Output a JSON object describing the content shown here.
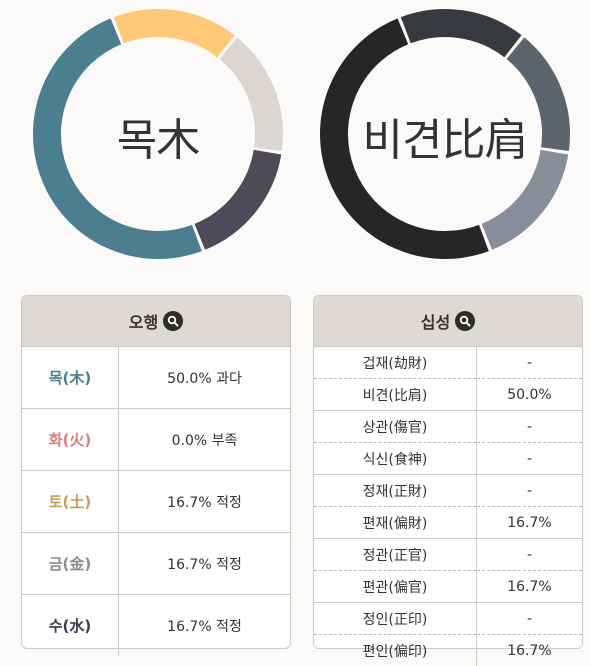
{
  "colors": {
    "wood": "#4b7f8f",
    "fire": "#df7b77",
    "earth": "#c89a5c",
    "metal": "#8c8c8c",
    "water": "#3a3a4a"
  },
  "donuts": [
    {
      "center_label": "목木",
      "segments": [
        {
          "percent": 16.7,
          "color": "#ffc977"
        },
        {
          "percent": 16.7,
          "color": "#dad6d1"
        },
        {
          "percent": 16.7,
          "color": "#4e4a57"
        },
        {
          "percent": 50.0,
          "color": "#4b7f8f"
        }
      ]
    },
    {
      "center_label": "비견比肩",
      "segments": [
        {
          "percent": 16.7,
          "color": "#36393d"
        },
        {
          "percent": 16.7,
          "color": "#5c646d"
        },
        {
          "percent": 16.7,
          "color": "#868f99"
        },
        {
          "percent": 50.0,
          "color": "#242628"
        }
      ]
    }
  ],
  "ohaeng": {
    "title": "오행",
    "icon": "search-icon",
    "rows": [
      {
        "element": "목(木)",
        "value": "50.0% 과다"
      },
      {
        "element": "화(火)",
        "value": "0.0% 부족"
      },
      {
        "element": "토(土)",
        "value": "16.7% 적정"
      },
      {
        "element": "금(金)",
        "value": "16.7% 적정"
      },
      {
        "element": "수(水)",
        "value": "16.7% 적정"
      }
    ]
  },
  "sipseong": {
    "title": "십성",
    "icon": "search-icon",
    "rows": [
      {
        "name": "겁재(劫財)",
        "value": "-"
      },
      {
        "name": "비견(比肩)",
        "value": "50.0%"
      },
      {
        "name": "상관(傷官)",
        "value": "-"
      },
      {
        "name": "식신(食神)",
        "value": "-"
      },
      {
        "name": "정재(正財)",
        "value": "-"
      },
      {
        "name": "편재(偏財)",
        "value": "16.7%"
      },
      {
        "name": "정관(正官)",
        "value": "-"
      },
      {
        "name": "편관(偏官)",
        "value": "16.7%"
      },
      {
        "name": "정인(正印)",
        "value": "-"
      },
      {
        "name": "편인(偏印)",
        "value": "16.7%"
      }
    ]
  }
}
